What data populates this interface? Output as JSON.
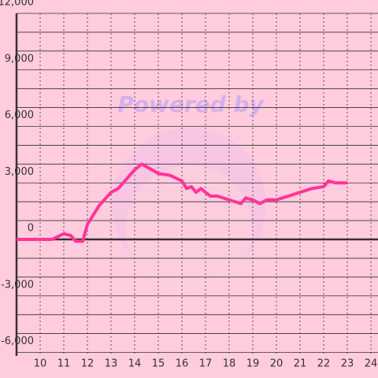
{
  "chart_data": {
    "type": "line",
    "watermark": "Powered by",
    "x": [
      9,
      10.5,
      11,
      11.3,
      11.5,
      11.8,
      12,
      12.5,
      13,
      13.3,
      14,
      14.3,
      15,
      15.5,
      16,
      16.2,
      16.4,
      16.6,
      16.8,
      17.2,
      17.5,
      18,
      18.5,
      18.7,
      19,
      19.3,
      19.6,
      20,
      20.5,
      21,
      21.5,
      22,
      22.2,
      22.5,
      23
    ],
    "series": [
      {
        "color": "#ff3399",
        "values": [
          0,
          0,
          300,
          200,
          -100,
          -100,
          800,
          1800,
          2500,
          2700,
          3700,
          4000,
          3500,
          3400,
          3100,
          2700,
          2800,
          2500,
          2700,
          2300,
          2300,
          2100,
          1900,
          2200,
          2100,
          1900,
          2100,
          2100,
          2300,
          2500,
          2700,
          2800,
          3100,
          3000,
          3000
        ]
      }
    ],
    "xlim": [
      9,
      24.3
    ],
    "xticks": [
      10,
      11,
      12,
      13,
      14,
      15,
      16,
      17,
      18,
      19,
      20,
      21,
      22,
      23,
      24
    ],
    "ylim": [
      -6000,
      12000
    ],
    "yticks": [
      {
        "value": -6000,
        "label": "-6,000"
      },
      {
        "value": -3000,
        "label": "-3,000"
      },
      0,
      {
        "value": 3000,
        "label": "3,000"
      },
      {
        "value": 6000,
        "label": "6,000"
      },
      {
        "value": 9000,
        "label": "9,000"
      },
      {
        "value": 12000,
        "label": "12,000"
      }
    ],
    "grid": true
  }
}
